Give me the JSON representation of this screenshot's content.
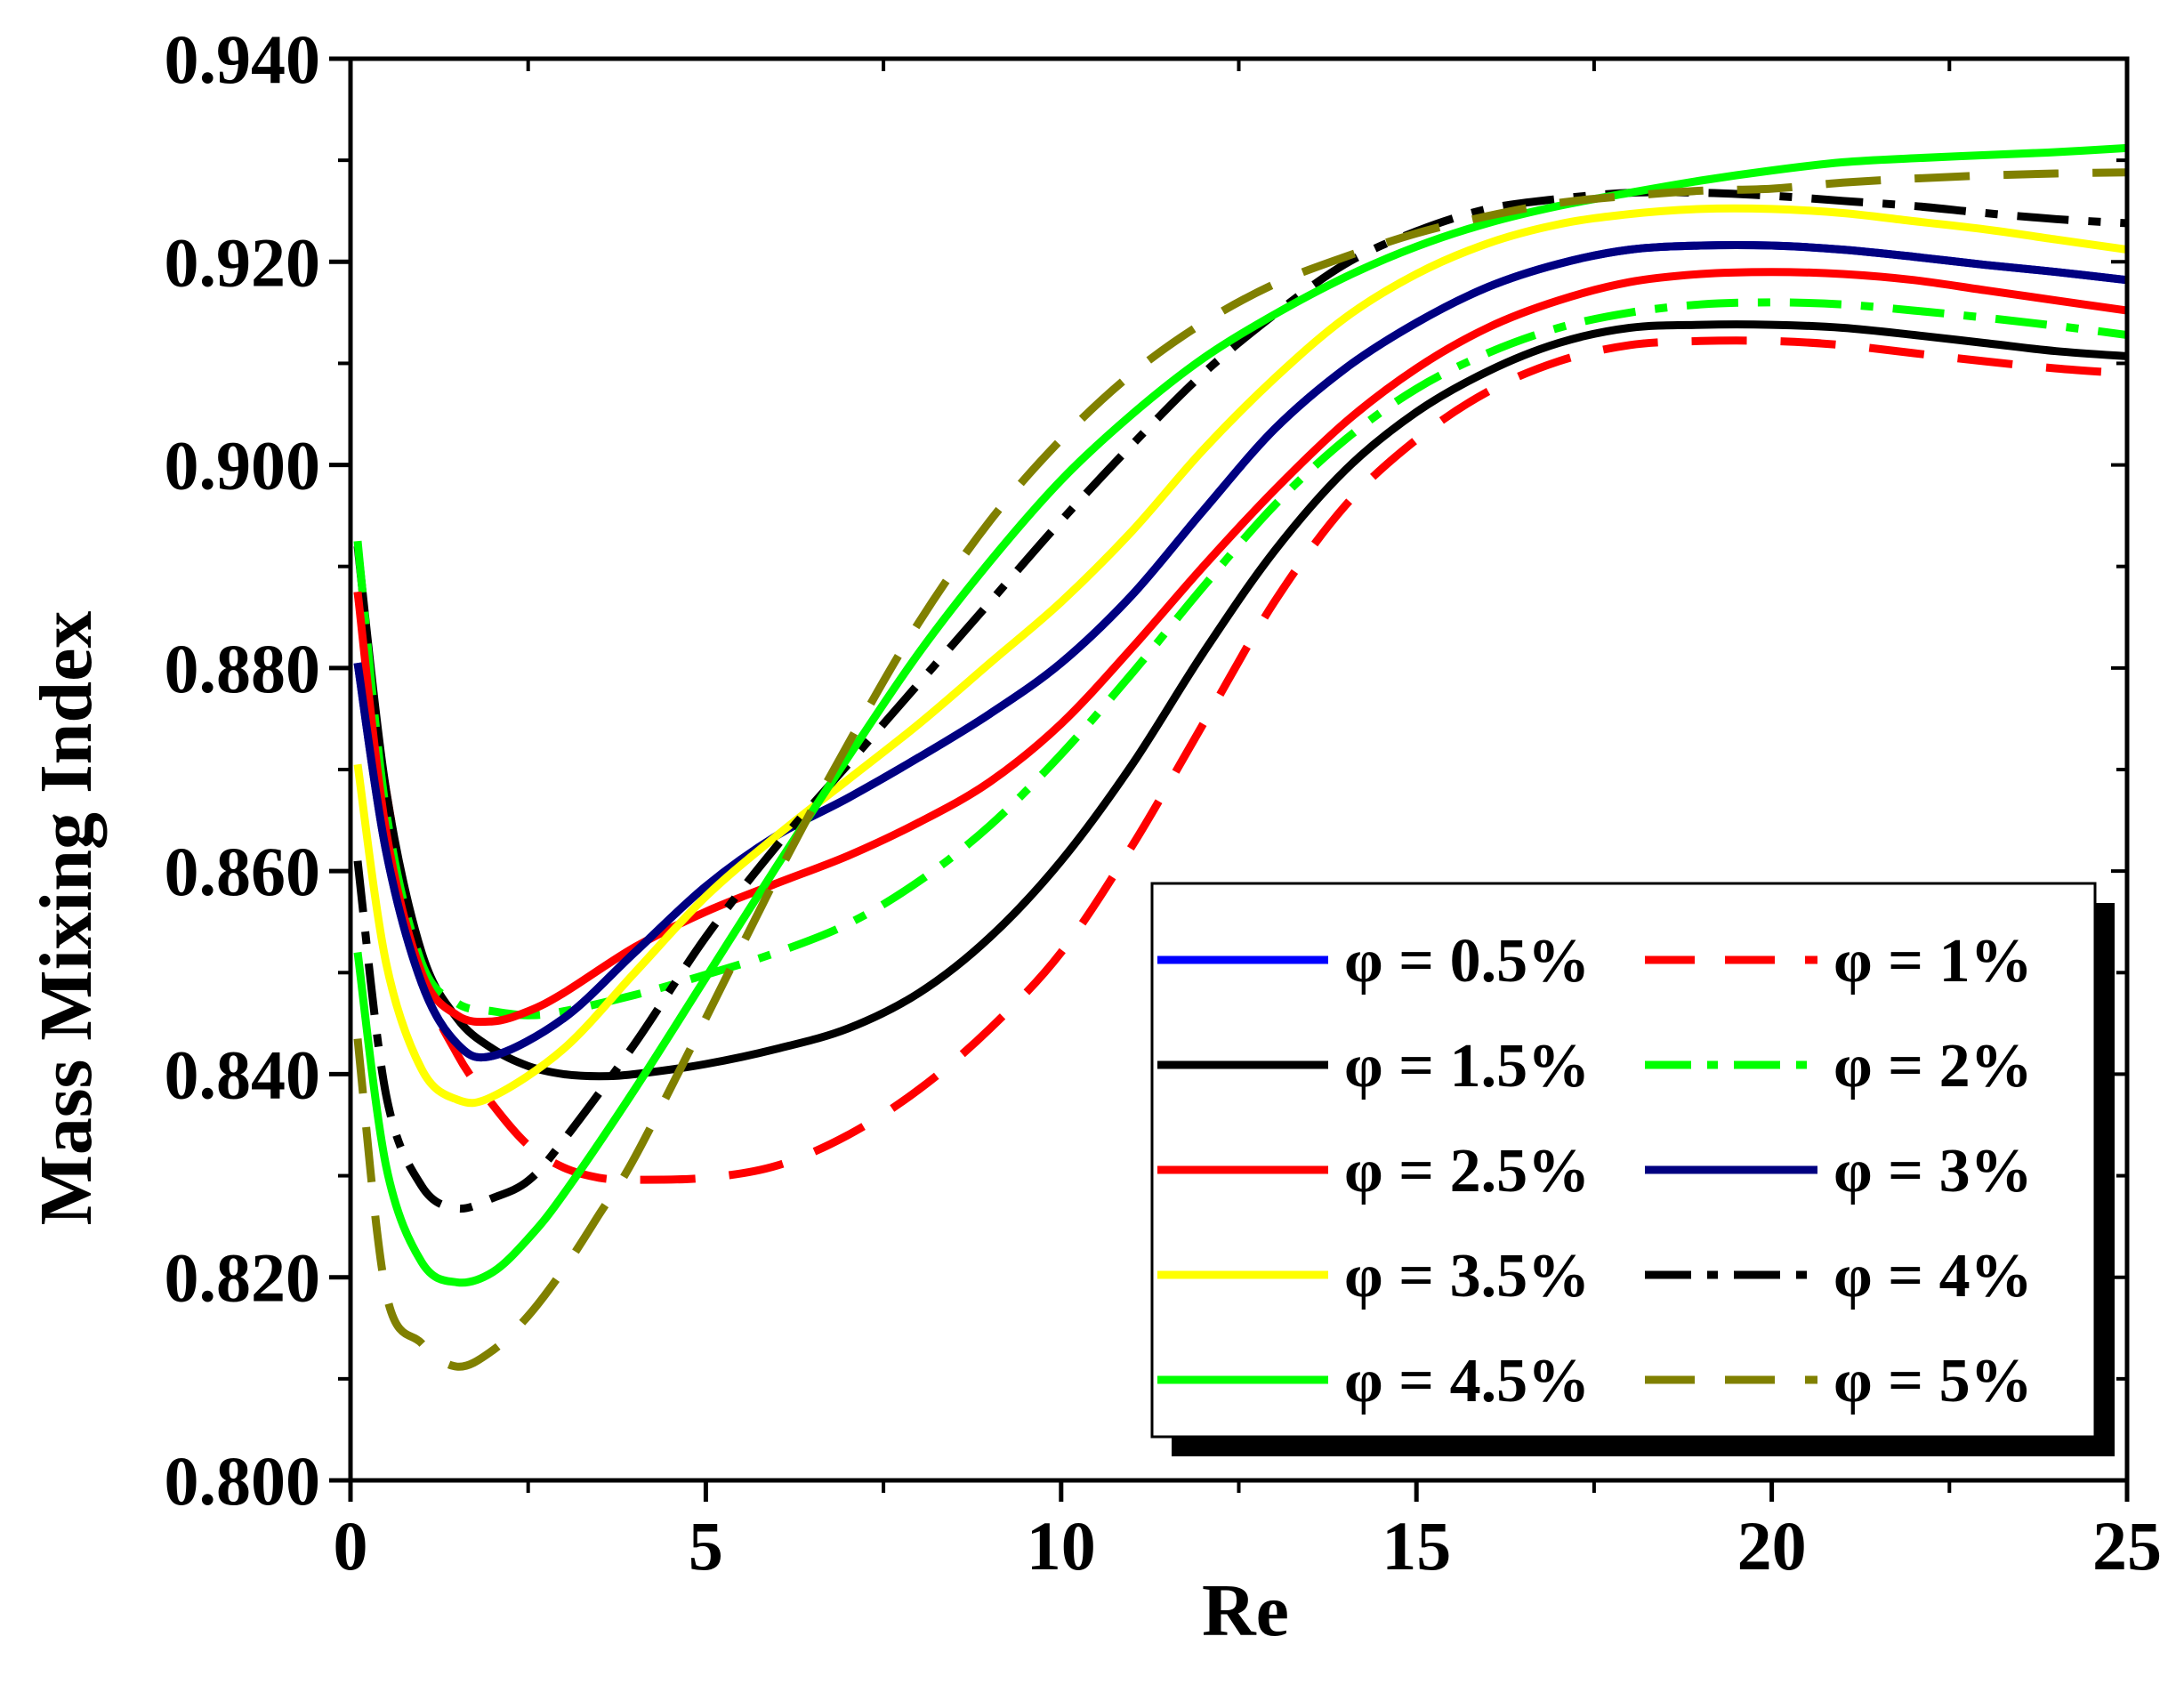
{
  "chart_data": {
    "type": "line",
    "title": "",
    "xlabel": "Re",
    "ylabel": "Mass Mixing Index",
    "xlim": [
      0,
      25
    ],
    "ylim": [
      0.8,
      0.94
    ],
    "xticks": [
      0,
      5,
      10,
      15,
      20,
      25
    ],
    "xtick_labels": [
      "0",
      "5",
      "10",
      "15",
      "20",
      "25"
    ],
    "yticks": [
      0.8,
      0.82,
      0.84,
      0.86,
      0.88,
      0.9,
      0.92,
      0.94
    ],
    "ytick_labels": [
      "0.800",
      "0.820",
      "0.840",
      "0.860",
      "0.880",
      "0.900",
      "0.920",
      "0.940"
    ],
    "grid": false,
    "legend_position": "bottom-right",
    "series": [
      {
        "name": "φ = 0.5%",
        "color": "#0000ff",
        "dash": "solid",
        "x": [
          0.1,
          0.5,
          1,
          1.5,
          2,
          3,
          4,
          5,
          6,
          7,
          8,
          9,
          10,
          11,
          12,
          13,
          14,
          15,
          16,
          17,
          18,
          19,
          20,
          21,
          22,
          23,
          24,
          25
        ],
        "y": [
          0.8805,
          0.862,
          0.849,
          0.843,
          0.8418,
          0.8455,
          0.852,
          0.8585,
          0.8635,
          0.8672,
          0.8712,
          0.8755,
          0.8805,
          0.8872,
          0.8955,
          0.9035,
          0.9095,
          0.914,
          0.9175,
          0.9198,
          0.9212,
          0.9216,
          0.9216,
          0.9212,
          0.9205,
          0.9197,
          0.919,
          0.9182
        ]
      },
      {
        "name": "φ = 1%",
        "color": "#ff0000",
        "dash": "dashed",
        "x": [
          0.1,
          0.5,
          1,
          1.5,
          2,
          2.5,
          3,
          3.5,
          4,
          5,
          6,
          7,
          8,
          9,
          10,
          11,
          12,
          13,
          14,
          15,
          16,
          17,
          18,
          19,
          20,
          21,
          22,
          23,
          24,
          25
        ],
        "y": [
          0.8875,
          0.868,
          0.85,
          0.842,
          0.837,
          0.833,
          0.8308,
          0.8298,
          0.8296,
          0.8298,
          0.831,
          0.834,
          0.8385,
          0.8445,
          0.852,
          0.8625,
          0.8745,
          0.8865,
          0.896,
          0.9025,
          0.9072,
          0.9102,
          0.9118,
          0.9122,
          0.9122,
          0.9118,
          0.911,
          0.9102,
          0.9095,
          0.909
        ]
      },
      {
        "name": "φ = 1.5%",
        "color": "#000000",
        "dash": "solid",
        "x": [
          0.1,
          0.5,
          1,
          1.5,
          2,
          2.5,
          3,
          3.5,
          4,
          5,
          6,
          7,
          8,
          9,
          10,
          11,
          12,
          13,
          14,
          15,
          16,
          17,
          18,
          19,
          20,
          21,
          22,
          23,
          24,
          25
        ],
        "y": [
          0.892,
          0.868,
          0.852,
          0.8455,
          0.8425,
          0.8408,
          0.84,
          0.8398,
          0.84,
          0.841,
          0.8425,
          0.8445,
          0.848,
          0.8535,
          0.861,
          0.8705,
          0.8815,
          0.8915,
          0.8995,
          0.9052,
          0.9092,
          0.912,
          0.9135,
          0.9138,
          0.9138,
          0.9135,
          0.9128,
          0.912,
          0.9112,
          0.9107
        ]
      },
      {
        "name": "φ = 2%",
        "color": "#00ff00",
        "dash": "dashdot",
        "x": [
          0.1,
          0.5,
          1,
          1.5,
          2,
          2.5,
          3,
          4,
          5,
          6,
          7,
          8,
          9,
          10,
          11,
          12,
          13,
          14,
          15,
          16,
          17,
          18,
          19,
          20,
          21,
          22,
          23,
          24,
          25
        ],
        "y": [
          0.8925,
          0.866,
          0.851,
          0.847,
          0.8462,
          0.8458,
          0.8462,
          0.8478,
          0.8498,
          0.852,
          0.8548,
          0.859,
          0.8645,
          0.8715,
          0.8795,
          0.888,
          0.896,
          0.9025,
          0.9075,
          0.911,
          0.9135,
          0.915,
          0.9158,
          0.916,
          0.9158,
          0.9152,
          0.9145,
          0.9137,
          0.9128
        ]
      },
      {
        "name": "φ = 2.5%",
        "color": "#ff0000",
        "dash": "solid",
        "x": [
          0.1,
          0.5,
          1,
          1.5,
          2,
          2.5,
          3,
          4,
          5,
          6,
          7,
          8,
          9,
          10,
          11,
          12,
          13,
          14,
          15,
          16,
          17,
          18,
          19,
          20,
          21,
          22,
          23,
          24,
          25
        ],
        "y": [
          0.8875,
          0.864,
          0.85,
          0.8458,
          0.8452,
          0.8462,
          0.848,
          0.8525,
          0.856,
          0.8588,
          0.8615,
          0.8648,
          0.8688,
          0.8745,
          0.882,
          0.89,
          0.8975,
          0.9042,
          0.9095,
          0.9135,
          0.9162,
          0.918,
          0.9188,
          0.919,
          0.9188,
          0.9182,
          0.9172,
          0.9162,
          0.9152
        ]
      },
      {
        "name": "φ = 3%",
        "color": "#000080",
        "dash": "solid",
        "x": [
          0.1,
          0.5,
          1,
          1.5,
          2,
          3,
          4,
          5,
          6,
          7,
          8,
          9,
          10,
          11,
          12,
          13,
          14,
          15,
          16,
          17,
          18,
          19,
          20,
          21,
          22,
          23,
          24,
          25
        ],
        "y": [
          0.8805,
          0.862,
          0.849,
          0.843,
          0.8418,
          0.8455,
          0.852,
          0.8585,
          0.8635,
          0.8672,
          0.8712,
          0.8755,
          0.8805,
          0.8872,
          0.8955,
          0.9035,
          0.9095,
          0.914,
          0.9175,
          0.9198,
          0.9212,
          0.9216,
          0.9216,
          0.9212,
          0.9205,
          0.9197,
          0.919,
          0.9182
        ]
      },
      {
        "name": "φ = 3.5%",
        "color": "#ffff00",
        "dash": "solid",
        "x": [
          0.1,
          0.5,
          1,
          1.5,
          2,
          3,
          4,
          5,
          6,
          7,
          8,
          9,
          10,
          11,
          12,
          13,
          14,
          15,
          16,
          17,
          18,
          19,
          20,
          21,
          22,
          23,
          24,
          25
        ],
        "y": [
          0.8705,
          0.851,
          0.8405,
          0.8375,
          0.8378,
          0.8425,
          0.85,
          0.8575,
          0.8635,
          0.869,
          0.8745,
          0.8805,
          0.8865,
          0.8935,
          0.9015,
          0.9085,
          0.9145,
          0.9188,
          0.9218,
          0.9237,
          0.9247,
          0.9252,
          0.9252,
          0.9248,
          0.924,
          0.9232,
          0.9222,
          0.9212
        ]
      },
      {
        "name": "φ = 4%",
        "color": "#000000",
        "dash": "dashdot",
        "x": [
          0.1,
          0.5,
          1,
          1.5,
          2,
          2.5,
          3,
          4,
          5,
          6,
          7,
          8,
          9,
          10,
          11,
          12,
          13,
          14,
          15,
          16,
          17,
          18,
          19,
          20,
          21,
          22,
          23,
          24,
          25
        ],
        "y": [
          0.861,
          0.838,
          0.829,
          0.8268,
          0.8278,
          0.8295,
          0.8335,
          0.843,
          0.8535,
          0.8625,
          0.8705,
          0.8785,
          0.8865,
          0.8945,
          0.902,
          0.909,
          0.9148,
          0.9198,
          0.923,
          0.9252,
          0.9262,
          0.9268,
          0.9268,
          0.9265,
          0.926,
          0.9255,
          0.9248,
          0.9242,
          0.9238
        ]
      },
      {
        "name": "φ = 4.5%",
        "color": "#00ff00",
        "dash": "solid",
        "x": [
          0.1,
          0.5,
          1,
          1.5,
          2,
          2.5,
          3,
          4,
          5,
          6,
          7,
          8,
          9,
          10,
          11,
          12,
          13,
          14,
          15,
          16,
          17,
          18,
          19,
          20,
          21,
          22,
          23,
          24,
          25
        ],
        "y": [
          0.852,
          0.831,
          0.8215,
          0.8195,
          0.8205,
          0.8238,
          0.8282,
          0.8385,
          0.8495,
          0.8605,
          0.8712,
          0.8815,
          0.8905,
          0.8985,
          0.905,
          0.9105,
          0.9148,
          0.9185,
          0.9215,
          0.9238,
          0.9255,
          0.9268,
          0.928,
          0.929,
          0.9298,
          0.9302,
          0.9305,
          0.9308,
          0.9312
        ]
      },
      {
        "name": "φ = 5%",
        "color": "#808000",
        "dash": "dashed",
        "x": [
          0.1,
          0.5,
          1,
          1.5,
          2,
          2.5,
          3,
          3.5,
          4,
          5,
          6,
          7,
          8,
          9,
          10,
          11,
          12,
          13,
          14,
          15,
          16,
          17,
          18,
          19,
          20,
          21,
          22,
          23,
          24,
          25
        ],
        "y": [
          0.8435,
          0.8185,
          0.8135,
          0.8112,
          0.8128,
          0.8162,
          0.8208,
          0.8262,
          0.8318,
          0.8455,
          0.8595,
          0.8725,
          0.8845,
          0.8945,
          0.9025,
          0.909,
          0.914,
          0.9178,
          0.9205,
          0.9228,
          0.9245,
          0.9258,
          0.9265,
          0.927,
          0.9272,
          0.9278,
          0.9282,
          0.9285,
          0.9287,
          0.9288
        ]
      }
    ]
  }
}
